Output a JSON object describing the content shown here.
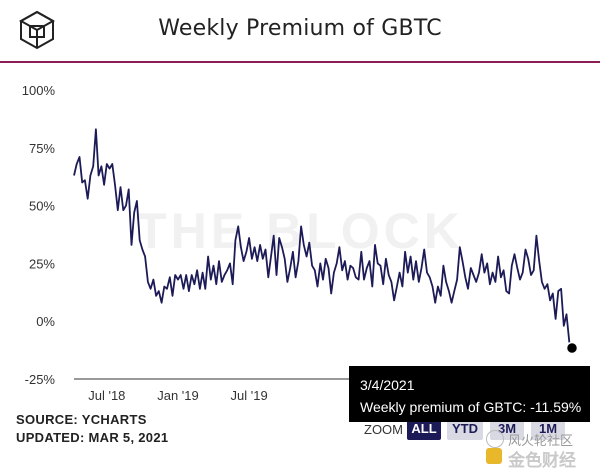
{
  "title": "Weekly Premium of GBTC",
  "watermark": "THE BLOCK",
  "source": {
    "line1": "SOURCE: YCHARTS",
    "line2": "UPDATED: MAR 5, 2021"
  },
  "zoom": {
    "label": "ZOOM",
    "buttons": [
      "ALL",
      "YTD",
      "3M",
      "1M"
    ],
    "active": "ALL"
  },
  "tooltip": {
    "date": "3/4/2021",
    "text": "Weekly premium of GBTC: -11.59%"
  },
  "corner_watermark": {
    "line1": "风火轮社区",
    "line2": "金色财经"
  },
  "colors": {
    "line": "#1d1b57",
    "rule": "#8a1e55",
    "tooltip_bg": "#000000"
  },
  "chart_data": {
    "type": "line",
    "title": "Weekly Premium of GBTC",
    "xlabel": "",
    "ylabel": "",
    "y_ticks": [
      "100%",
      "75%",
      "50%",
      "25%",
      "0%",
      "-25%"
    ],
    "y_tick_values": [
      100,
      75,
      50,
      25,
      0,
      -25
    ],
    "ylim": [
      -25,
      100
    ],
    "x_ticks": [
      "Jul '18",
      "Jan '19",
      "Jul '19"
    ],
    "x_tick_index": [
      12,
      38,
      64
    ],
    "grid": false,
    "series": [
      {
        "values": [
          63,
          68,
          71,
          60,
          61,
          53,
          63,
          67,
          83,
          63,
          67,
          59,
          68,
          66,
          68,
          59,
          48,
          58,
          48,
          50,
          57,
          33,
          47,
          52,
          35,
          31,
          28,
          17,
          14,
          18,
          11,
          13,
          8,
          15,
          14,
          19,
          11,
          20,
          18,
          20,
          14,
          20,
          13,
          20,
          16,
          22,
          14,
          21,
          14,
          28,
          18,
          24,
          16,
          26,
          17,
          20,
          22,
          25,
          16,
          35,
          41,
          32,
          26,
          30,
          36,
          27,
          32,
          26,
          33,
          27,
          31,
          19,
          28,
          37,
          20,
          36,
          32,
          27,
          17,
          23,
          30,
          19,
          26,
          41,
          33,
          28,
          34,
          24,
          22,
          15,
          25,
          18,
          27,
          23,
          12,
          21,
          25,
          32,
          22,
          26,
          18,
          24,
          23,
          19,
          18,
          30,
          18,
          23,
          26,
          15,
          33,
          25,
          24,
          16,
          27,
          20,
          17,
          9,
          15,
          21,
          15,
          30,
          21,
          28,
          18,
          26,
          17,
          23,
          31,
          21,
          19,
          15,
          8,
          15,
          11,
          24,
          17,
          13,
          8,
          13,
          18,
          32,
          26,
          19,
          14,
          23,
          20,
          17,
          21,
          29,
          21,
          25,
          16,
          21,
          17,
          28,
          19,
          22,
          13,
          12,
          24,
          29,
          23,
          18,
          21,
          31,
          27,
          20,
          22,
          37,
          26,
          17,
          14,
          16,
          9,
          12,
          1,
          13,
          14,
          -2,
          3,
          -9,
          -11.59
        ]
      }
    ],
    "highlight": {
      "date": "3/4/2021",
      "value": -11.59
    }
  }
}
